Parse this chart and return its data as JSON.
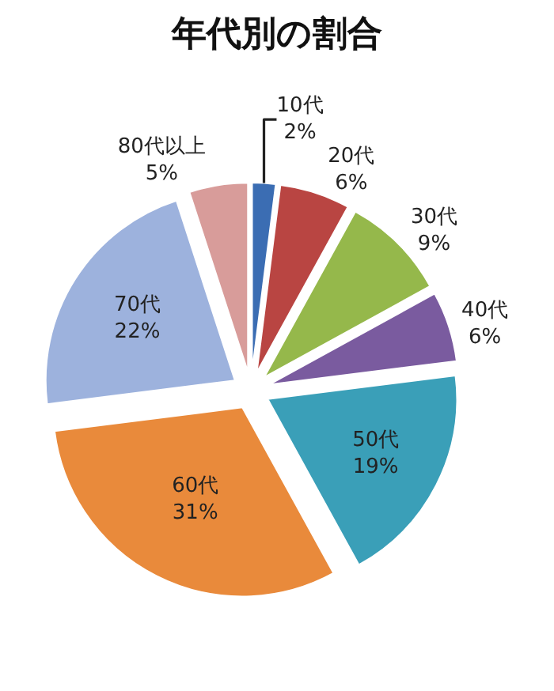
{
  "chart_data": {
    "type": "pie",
    "title": "年代別の割合",
    "categories": [
      "10代",
      "20代",
      "30代",
      "40代",
      "50代",
      "60代",
      "70代",
      "80代以上"
    ],
    "values": [
      2,
      6,
      9,
      6,
      19,
      31,
      22,
      5
    ],
    "value_labels": [
      "2%",
      "6%",
      "9%",
      "6%",
      "19%",
      "31%",
      "22%",
      "5%"
    ],
    "colors": [
      "#3b6db3",
      "#b94542",
      "#95b84b",
      "#7a5b9f",
      "#3a9fb8",
      "#e98a3b",
      "#9db2dd",
      "#d89c9a"
    ],
    "legend": false
  }
}
